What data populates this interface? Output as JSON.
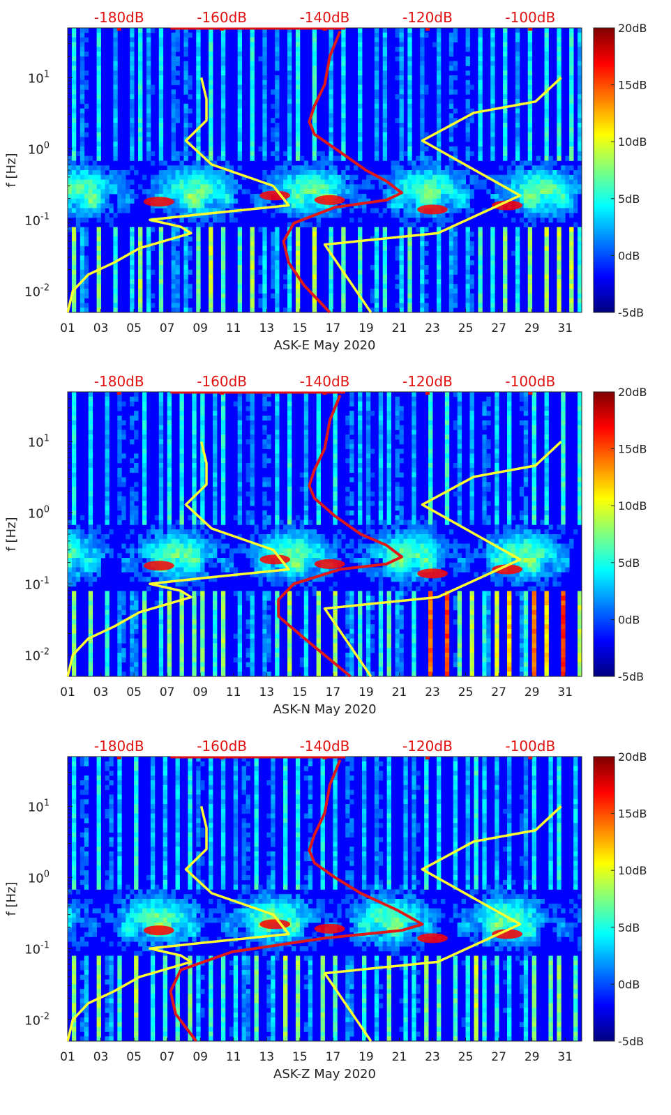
{
  "colors": {
    "jet": [
      "#00007f",
      "#0000ff",
      "#007fff",
      "#00ffff",
      "#7fff7f",
      "#ffff00",
      "#ff7f00",
      "#ff0000",
      "#7f0000"
    ],
    "top_axis": "#e01010",
    "nlnm": "#ffff30",
    "station_curve": "#e01818",
    "axis": "#222222"
  },
  "chart_data": [
    {
      "type": "heatmap",
      "title": "",
      "xlabel": "ASK-E May 2020",
      "ylabel": "f [Hz]",
      "x_ticks": [
        "01",
        "03",
        "05",
        "07",
        "09",
        "11",
        "13",
        "15",
        "17",
        "19",
        "21",
        "23",
        "25",
        "27",
        "29",
        "31"
      ],
      "x_range_days": [
        1,
        32
      ],
      "y_scale": "log",
      "y_range_hz": [
        0.005,
        50
      ],
      "y_ticks": [
        "10-2",
        "10-1",
        "100",
        "101"
      ],
      "colorbar": {
        "range_db": [
          -5,
          20
        ],
        "ticks": [
          "20dB",
          "15dB",
          "10dB",
          "5dB",
          "0dB",
          "-5dB"
        ],
        "colormap": "jet"
      },
      "top_axis": {
        "ticks": [
          "-180dB",
          "-160dB",
          "-140dB",
          "-120dB",
          "-100dB"
        ],
        "range_db": [
          -190,
          -90
        ]
      },
      "series": [
        {
          "id": "lower_noise_model",
          "color": "yellow",
          "points_db_hz": [
            [
              -190,
              0.005
            ],
            [
              -189,
              0.01
            ],
            [
              -186,
              0.017
            ],
            [
              -181,
              0.025
            ],
            [
              -176,
              0.04
            ],
            [
              -166,
              0.065
            ],
            [
              -168,
              0.08
            ],
            [
              -174,
              0.1
            ],
            [
              -164,
              0.12
            ],
            [
              -147,
              0.16
            ],
            [
              -150,
              0.3
            ],
            [
              -162,
              0.6
            ],
            [
              -167,
              1.3
            ],
            [
              -163,
              2.5
            ],
            [
              -163,
              5
            ],
            [
              -164,
              10
            ]
          ]
        },
        {
          "id": "upper_noise_model",
          "color": "yellow",
          "points_db_hz": [
            [
              -131,
              0.005
            ],
            [
              -140,
              0.045
            ],
            [
              -118,
              0.065
            ],
            [
              -102,
              0.22
            ],
            [
              -121,
              1.3
            ],
            [
              -111,
              3.2
            ],
            [
              -99,
              4.6
            ],
            [
              -94,
              10
            ]
          ]
        },
        {
          "id": "station_psd",
          "color": "red",
          "points_db_hz": [
            [
              -139,
              0.005
            ],
            [
              -144,
              0.012
            ],
            [
              -147,
              0.025
            ],
            [
              -148,
              0.05
            ],
            [
              -146,
              0.09
            ],
            [
              -138,
              0.15
            ],
            [
              -128,
              0.19
            ],
            [
              -125,
              0.24
            ],
            [
              -128,
              0.35
            ],
            [
              -132,
              0.5
            ],
            [
              -137,
              0.9
            ],
            [
              -142,
              1.6
            ],
            [
              -143,
              2.4
            ],
            [
              -142,
              4
            ],
            [
              -140,
              8
            ],
            [
              -139,
              20
            ],
            [
              -137,
              45
            ]
          ]
        }
      ]
    },
    {
      "type": "heatmap",
      "title": "",
      "xlabel": "ASK-N May 2020",
      "ylabel": "f [Hz]",
      "x_ticks": [
        "01",
        "03",
        "05",
        "07",
        "09",
        "11",
        "13",
        "15",
        "17",
        "19",
        "21",
        "23",
        "25",
        "27",
        "29",
        "31"
      ],
      "x_range_days": [
        1,
        32
      ],
      "y_scale": "log",
      "y_range_hz": [
        0.005,
        50
      ],
      "y_ticks": [
        "10-2",
        "10-1",
        "100",
        "101"
      ],
      "colorbar": {
        "range_db": [
          -5,
          20
        ],
        "ticks": [
          "20dB",
          "15dB",
          "10dB",
          "5dB",
          "0dB",
          "-5dB"
        ],
        "colormap": "jet"
      },
      "top_axis": {
        "ticks": [
          "-180dB",
          "-160dB",
          "-140dB",
          "-120dB",
          "-100dB"
        ],
        "range_db": [
          -190,
          -90
        ]
      },
      "series": [
        {
          "id": "lower_noise_model",
          "color": "yellow",
          "points_db_hz": [
            [
              -190,
              0.005
            ],
            [
              -189,
              0.01
            ],
            [
              -186,
              0.017
            ],
            [
              -181,
              0.025
            ],
            [
              -176,
              0.04
            ],
            [
              -166,
              0.065
            ],
            [
              -168,
              0.08
            ],
            [
              -174,
              0.1
            ],
            [
              -164,
              0.12
            ],
            [
              -147,
              0.16
            ],
            [
              -150,
              0.3
            ],
            [
              -162,
              0.6
            ],
            [
              -167,
              1.3
            ],
            [
              -163,
              2.5
            ],
            [
              -163,
              5
            ],
            [
              -164,
              10
            ]
          ]
        },
        {
          "id": "upper_noise_model",
          "color": "yellow",
          "points_db_hz": [
            [
              -131,
              0.005
            ],
            [
              -140,
              0.045
            ],
            [
              -118,
              0.065
            ],
            [
              -102,
              0.22
            ],
            [
              -121,
              1.3
            ],
            [
              -111,
              3.2
            ],
            [
              -99,
              4.6
            ],
            [
              -94,
              10
            ]
          ]
        },
        {
          "id": "station_psd",
          "color": "red",
          "points_db_hz": [
            [
              -135,
              0.005
            ],
            [
              -143,
              0.015
            ],
            [
              -149,
              0.035
            ],
            [
              -149,
              0.06
            ],
            [
              -146,
              0.1
            ],
            [
              -137,
              0.16
            ],
            [
              -128,
              0.19
            ],
            [
              -125,
              0.24
            ],
            [
              -128,
              0.35
            ],
            [
              -133,
              0.5
            ],
            [
              -138,
              0.9
            ],
            [
              -142,
              1.6
            ],
            [
              -143,
              2.4
            ],
            [
              -142,
              4
            ],
            [
              -140,
              8
            ],
            [
              -139,
              20
            ],
            [
              -137,
              45
            ]
          ]
        }
      ]
    },
    {
      "type": "heatmap",
      "title": "",
      "xlabel": "ASK-Z May 2020",
      "ylabel": "f [Hz]",
      "x_ticks": [
        "01",
        "03",
        "05",
        "07",
        "09",
        "11",
        "13",
        "15",
        "17",
        "19",
        "21",
        "23",
        "25",
        "27",
        "29",
        "31"
      ],
      "x_range_days": [
        1,
        32
      ],
      "y_scale": "log",
      "y_range_hz": [
        0.005,
        50
      ],
      "y_ticks": [
        "10-2",
        "10-1",
        "100",
        "101"
      ],
      "colorbar": {
        "range_db": [
          -5,
          20
        ],
        "ticks": [
          "20dB",
          "15dB",
          "10dB",
          "5dB",
          "0dB",
          "-5dB"
        ],
        "colormap": "jet"
      },
      "top_axis": {
        "ticks": [
          "-180dB",
          "-160dB",
          "-140dB",
          "-120dB",
          "-100dB"
        ],
        "range_db": [
          -190,
          -90
        ]
      },
      "series": [
        {
          "id": "lower_noise_model",
          "color": "yellow",
          "points_db_hz": [
            [
              -190,
              0.005
            ],
            [
              -189,
              0.01
            ],
            [
              -186,
              0.017
            ],
            [
              -181,
              0.025
            ],
            [
              -176,
              0.04
            ],
            [
              -166,
              0.065
            ],
            [
              -168,
              0.08
            ],
            [
              -174,
              0.1
            ],
            [
              -164,
              0.12
            ],
            [
              -147,
              0.16
            ],
            [
              -150,
              0.3
            ],
            [
              -162,
              0.6
            ],
            [
              -167,
              1.3
            ],
            [
              -163,
              2.5
            ],
            [
              -163,
              5
            ],
            [
              -164,
              10
            ]
          ]
        },
        {
          "id": "upper_noise_model",
          "color": "yellow",
          "points_db_hz": [
            [
              -131,
              0.005
            ],
            [
              -140,
              0.045
            ],
            [
              -118,
              0.065
            ],
            [
              -102,
              0.22
            ],
            [
              -121,
              1.3
            ],
            [
              -111,
              3.2
            ],
            [
              -99,
              4.6
            ],
            [
              -94,
              10
            ]
          ]
        },
        {
          "id": "station_psd",
          "color": "red",
          "points_db_hz": [
            [
              -165,
              0.005
            ],
            [
              -169,
              0.012
            ],
            [
              -170,
              0.025
            ],
            [
              -168,
              0.05
            ],
            [
              -158,
              0.09
            ],
            [
              -140,
              0.14
            ],
            [
              -125,
              0.18
            ],
            [
              -121,
              0.22
            ],
            [
              -126,
              0.35
            ],
            [
              -133,
              0.6
            ],
            [
              -138,
              1
            ],
            [
              -142,
              1.6
            ],
            [
              -143,
              2.4
            ],
            [
              -142,
              4
            ],
            [
              -140,
              8
            ],
            [
              -139,
              20
            ],
            [
              -137,
              45
            ]
          ]
        }
      ]
    }
  ]
}
